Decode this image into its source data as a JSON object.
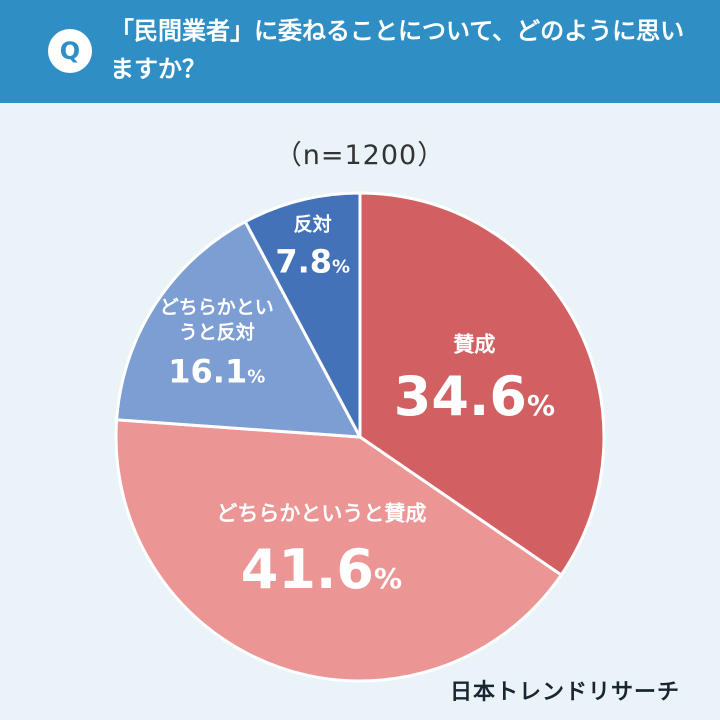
{
  "header": {
    "badge": "Q",
    "question": "「民間業者」に委ねることについて、どのように思いますか？"
  },
  "sample_size": "（n=1200）",
  "logo": "日本トレンドリサーチ",
  "chart_data": {
    "type": "pie",
    "sample_size_label": "（n=1200）",
    "unit": "%",
    "slices": [
      {
        "label": "賛成",
        "value": 34.6,
        "color": "#d26062"
      },
      {
        "label": "どちらかというと賛成",
        "value": 41.6,
        "color": "#ec9595"
      },
      {
        "label": "どちらかというと反対",
        "value": 16.1,
        "color": "#7d9ed3"
      },
      {
        "label": "反対",
        "value": 7.8,
        "color": "#4472b8"
      }
    ]
  }
}
